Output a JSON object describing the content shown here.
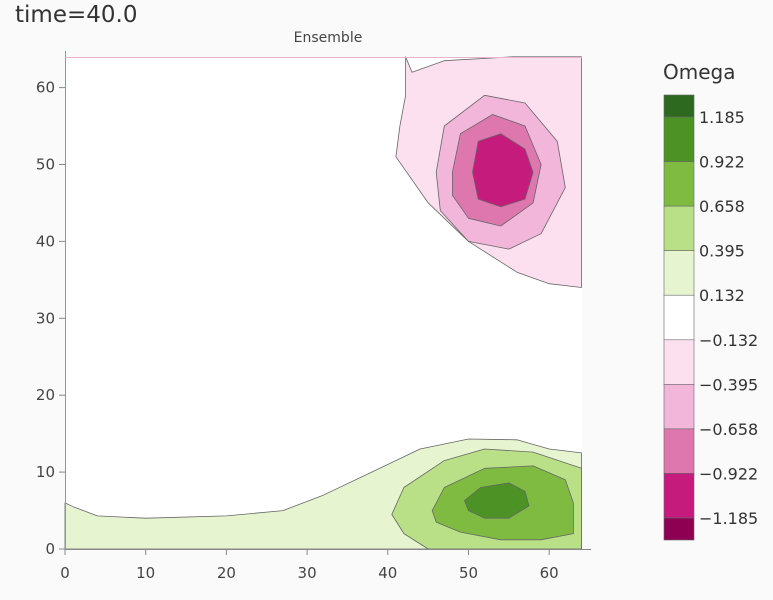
{
  "title": "time=40.0",
  "chart_data": {
    "type": "contour",
    "title": "Ensemble",
    "xlabel": "",
    "ylabel": "",
    "xlim": [
      0,
      64
    ],
    "ylim": [
      0,
      64
    ],
    "xticks": [
      "0",
      "10",
      "20",
      "30",
      "40",
      "50",
      "60"
    ],
    "xtick_values": [
      0,
      10,
      20,
      30,
      40,
      50,
      60
    ],
    "yticks": [
      "0",
      "10",
      "20",
      "30",
      "40",
      "50",
      "60"
    ],
    "ytick_values": [
      0,
      10,
      20,
      30,
      40,
      50,
      60
    ],
    "grid": false,
    "colorbar": {
      "title": "Omega",
      "levels": [
        1.185,
        0.922,
        0.658,
        0.395,
        0.132,
        -0.132,
        -0.395,
        -0.658,
        -0.922,
        -1.185
      ],
      "labels": [
        "1.185",
        "0.922",
        "0.658",
        "0.395",
        "0.132",
        "−0.132",
        "−0.395",
        "−0.658",
        "−0.922",
        "−1.185"
      ],
      "colors": [
        "#2d6a1f",
        "#4c9225",
        "#7fbb41",
        "#b9e086",
        "#e6f5d0",
        "#ffffff",
        "#fde0ef",
        "#f1b6da",
        "#de77ae",
        "#c51b7d",
        "#8e0152"
      ]
    },
    "regions": [
      {
        "name": "magenta-band-1",
        "level_range": [
          -0.395,
          -0.132
        ],
        "color": "#fde0ef",
        "points": [
          [
            42.2,
            64
          ],
          [
            43,
            62
          ],
          [
            47,
            63.5
          ],
          [
            55.5,
            64
          ],
          [
            64,
            64
          ],
          [
            64,
            34
          ],
          [
            60,
            34.5
          ],
          [
            56,
            36
          ],
          [
            50,
            40
          ],
          [
            45,
            45
          ],
          [
            41,
            51
          ],
          [
            41.5,
            55
          ],
          [
            42.2,
            59
          ],
          [
            42.2,
            64
          ]
        ]
      },
      {
        "name": "magenta-band-2",
        "level_range": [
          -0.658,
          -0.395
        ],
        "color": "#f1b6da",
        "points": [
          [
            46,
            49
          ],
          [
            47,
            55
          ],
          [
            52,
            59
          ],
          [
            57,
            58
          ],
          [
            61,
            53
          ],
          [
            62,
            47
          ],
          [
            59,
            41
          ],
          [
            55,
            39
          ],
          [
            50,
            40
          ],
          [
            46.5,
            44
          ],
          [
            46,
            49
          ]
        ]
      },
      {
        "name": "magenta-band-3",
        "level_range": [
          -0.922,
          -0.658
        ],
        "color": "#de77ae",
        "points": [
          [
            48,
            49
          ],
          [
            49,
            54
          ],
          [
            53,
            56.5
          ],
          [
            57,
            55
          ],
          [
            59,
            50
          ],
          [
            58,
            45
          ],
          [
            54,
            42
          ],
          [
            50,
            43
          ],
          [
            48,
            46
          ],
          [
            48,
            49
          ]
        ]
      },
      {
        "name": "magenta-band-4",
        "level_range": [
          -1.185,
          -0.922
        ],
        "color": "#c51b7d",
        "points": [
          [
            50.5,
            49
          ],
          [
            51.2,
            53
          ],
          [
            54,
            54
          ],
          [
            57,
            52
          ],
          [
            58,
            49
          ],
          [
            57,
            45.5
          ],
          [
            54,
            44.5
          ],
          [
            51.2,
            45.5
          ],
          [
            50.5,
            49
          ]
        ]
      },
      {
        "name": "green-band-1",
        "level_range": [
          0.132,
          0.395
        ],
        "color": "#e6f5d0",
        "points": [
          [
            0,
            0
          ],
          [
            0,
            6
          ],
          [
            1,
            5.5
          ],
          [
            4,
            4.3
          ],
          [
            10,
            4
          ],
          [
            20,
            4.3
          ],
          [
            27,
            5
          ],
          [
            32,
            7
          ],
          [
            38,
            10
          ],
          [
            44,
            13
          ],
          [
            50,
            14.3
          ],
          [
            56,
            14.2
          ],
          [
            60,
            13
          ],
          [
            64,
            12.5
          ],
          [
            64,
            0
          ],
          [
            0,
            0
          ]
        ]
      },
      {
        "name": "green-band-2",
        "level_range": [
          0.395,
          0.658
        ],
        "color": "#b9e086",
        "points": [
          [
            45,
            0
          ],
          [
            42,
            2
          ],
          [
            40.5,
            4.5
          ],
          [
            42,
            8
          ],
          [
            47,
            11.5
          ],
          [
            52,
            13
          ],
          [
            58,
            12.6
          ],
          [
            64,
            10.5
          ],
          [
            64,
            0
          ],
          [
            45,
            0
          ]
        ]
      },
      {
        "name": "green-band-3",
        "level_range": [
          0.658,
          0.922
        ],
        "color": "#7fbb41",
        "points": [
          [
            45.5,
            5
          ],
          [
            47,
            8
          ],
          [
            52,
            10.5
          ],
          [
            58,
            10.8
          ],
          [
            62,
            9
          ],
          [
            63,
            6
          ],
          [
            63,
            2
          ],
          [
            59,
            1.2
          ],
          [
            54,
            1.2
          ],
          [
            49,
            2.2
          ],
          [
            46,
            3.5
          ],
          [
            45.5,
            5
          ]
        ]
      },
      {
        "name": "green-band-4",
        "level_range": [
          0.922,
          1.185
        ],
        "color": "#4c9225",
        "points": [
          [
            49.5,
            6.3
          ],
          [
            51.5,
            8
          ],
          [
            55,
            8.6
          ],
          [
            57,
            7.5
          ],
          [
            57.5,
            5.6
          ],
          [
            55,
            4
          ],
          [
            52,
            4
          ],
          [
            50,
            5
          ],
          [
            49.5,
            6.3
          ]
        ]
      }
    ]
  }
}
